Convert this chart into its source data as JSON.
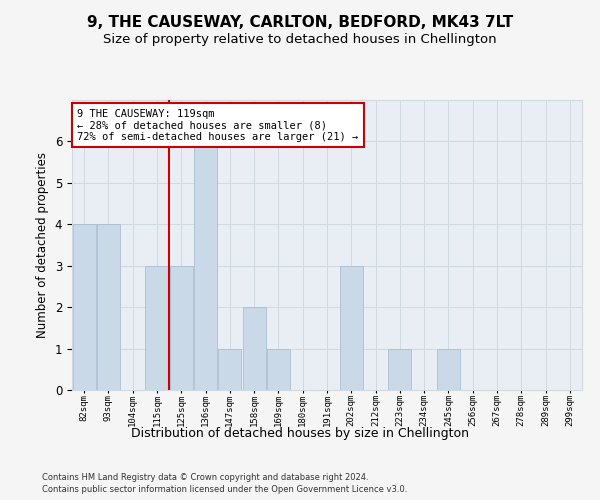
{
  "title": "9, THE CAUSEWAY, CARLTON, BEDFORD, MK43 7LT",
  "subtitle": "Size of property relative to detached houses in Chellington",
  "xlabel": "Distribution of detached houses by size in Chellington",
  "ylabel": "Number of detached properties",
  "footer1": "Contains HM Land Registry data © Crown copyright and database right 2024.",
  "footer2": "Contains public sector information licensed under the Open Government Licence v3.0.",
  "annotation_line1": "9 THE CAUSEWAY: 119sqm",
  "annotation_line2": "← 28% of detached houses are smaller (8)",
  "annotation_line3": "72% of semi-detached houses are larger (21) →",
  "bar_labels": [
    "82sqm",
    "93sqm",
    "104sqm",
    "115sqm",
    "125sqm",
    "136sqm",
    "147sqm",
    "158sqm",
    "169sqm",
    "180sqm",
    "191sqm",
    "202sqm",
    "212sqm",
    "223sqm",
    "234sqm",
    "245sqm",
    "256sqm",
    "267sqm",
    "278sqm",
    "289sqm",
    "299sqm"
  ],
  "bar_values": [
    4,
    4,
    0,
    3,
    3,
    6,
    1,
    2,
    1,
    0,
    0,
    3,
    0,
    1,
    0,
    1,
    0,
    0,
    0,
    0,
    0
  ],
  "bar_color": "#c9d9e8",
  "bar_edge_color": "#a0b8cc",
  "red_line_x": 3.5,
  "ylim": [
    0,
    7
  ],
  "yticks": [
    0,
    1,
    2,
    3,
    4,
    5,
    6,
    7
  ],
  "grid_color": "#d0d8e0",
  "bg_color": "#e8eef4",
  "fig_bg_color": "#f5f5f5",
  "title_fontsize": 11,
  "subtitle_fontsize": 9.5,
  "ylabel_fontsize": 8.5,
  "xlabel_fontsize": 9,
  "tick_fontsize": 6.5,
  "annotation_fontsize": 7.5,
  "footer_fontsize": 6,
  "annotation_box_color": "#ffffff",
  "annotation_box_edge": "#cc0000",
  "red_line_color": "#cc0000"
}
